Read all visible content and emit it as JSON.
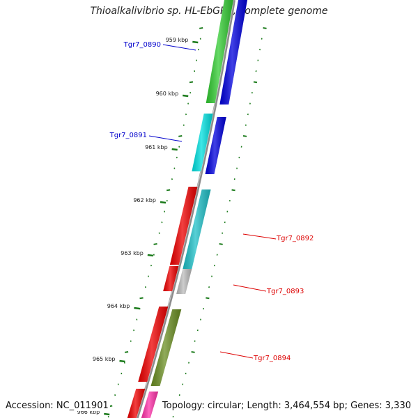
{
  "title": "Thioalkalivibrio sp. HL-EbGR7, complete genome",
  "accession_text": "Accession: NC_011901",
  "summary_text": "Topology: circular; Length: 3,464,554 bp; Genes: 3,330",
  "colors": {
    "backbone": "#8c8c8c",
    "tick": "#1a7a1a",
    "label_blue": "#0000cc",
    "label_red": "#dd0000"
  },
  "kbp_marks": [
    "959 kbp",
    "960 kbp",
    "961 kbp",
    "962 kbp",
    "963 kbp",
    "964 kbp",
    "965 kbp",
    "966 kbp"
  ],
  "genes": [
    {
      "label": "Tgr7_0890",
      "color": "#0000cc"
    },
    {
      "label": "Tgr7_0891",
      "color": "#0000cc"
    },
    {
      "label": "Tgr7_0892",
      "color": "#dd0000"
    },
    {
      "label": "Tgr7_0893",
      "color": "#dd0000"
    },
    {
      "label": "Tgr7_0894",
      "color": "#dd0000"
    }
  ],
  "feature_colors": [
    "#33cc33",
    "#0000dd",
    "#00e0e0",
    "#0000dd",
    "#ee0000",
    "#20c0c8",
    "#ee0000",
    "#bdbdbd",
    "#ee0000",
    "#6b8e23",
    "#ee0000",
    "#ff33aa"
  ]
}
